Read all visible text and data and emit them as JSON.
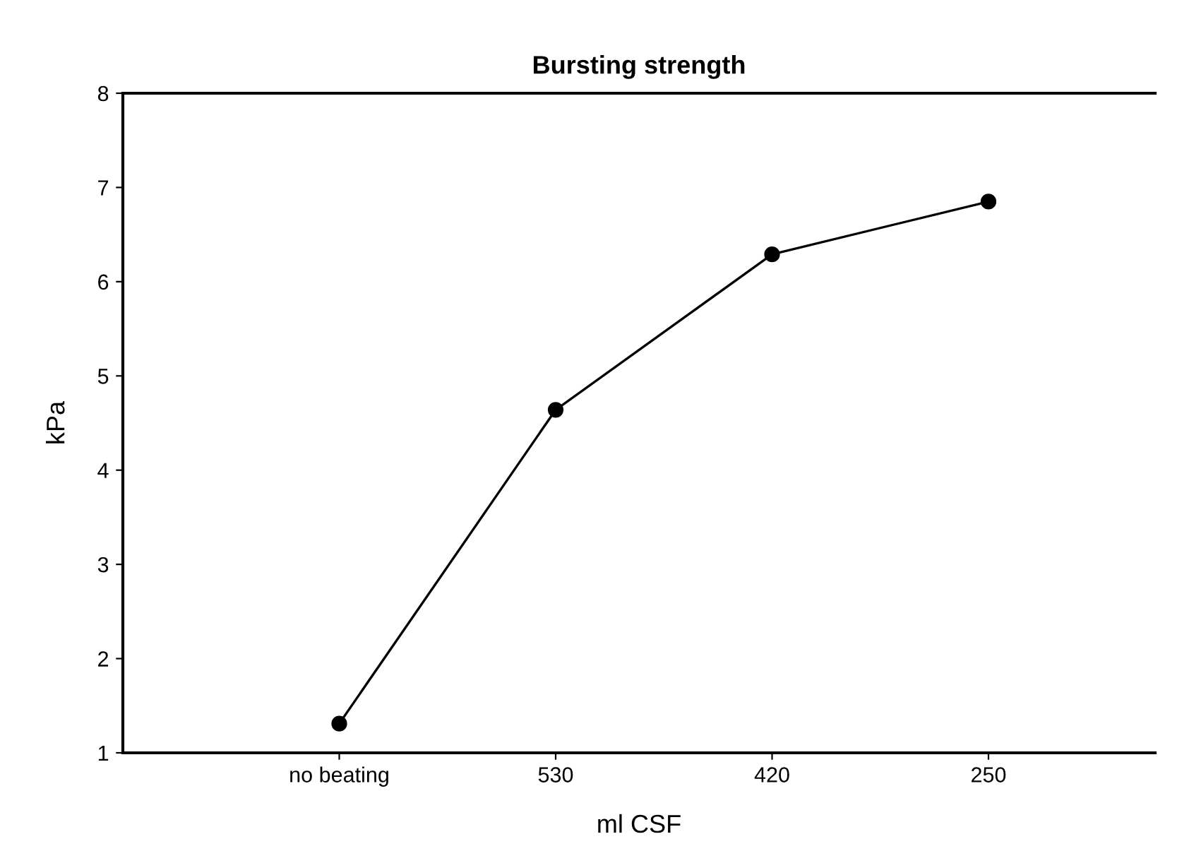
{
  "chart_data": {
    "type": "line",
    "title": "Bursting strength",
    "xlabel": "ml CSF",
    "ylabel": "kPa",
    "categories": [
      "no beating",
      "530",
      "420",
      "250"
    ],
    "series": [
      {
        "color": "#000000",
        "values": [
          1.31,
          4.64,
          6.29,
          6.85
        ]
      }
    ],
    "ylim": [
      1,
      8
    ],
    "yticks": [
      1,
      2,
      3,
      4,
      5,
      6,
      7,
      8
    ],
    "grid": false,
    "legend": false,
    "marker": "circle",
    "line_style": "solid"
  }
}
